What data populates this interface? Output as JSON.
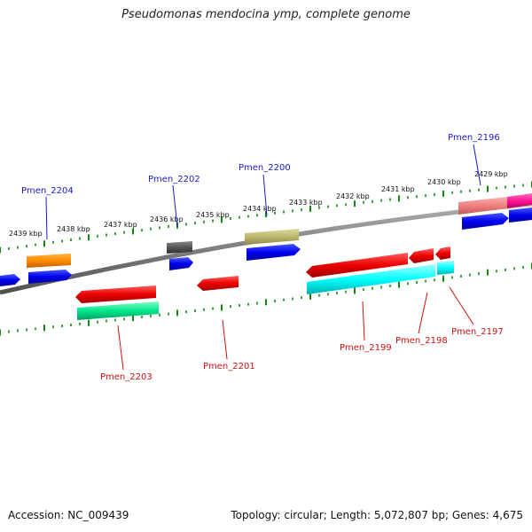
{
  "title": "Pseudomonas mendocina ymp, complete genome",
  "footer": {
    "accession": "Accession: NC_009439",
    "topology": "Topology: circular; Length: 5,072,807 bp; Genes: 4,675"
  },
  "colors": {
    "backbone": "#808080",
    "tick": "#118811",
    "forward_label": "#1a1acc",
    "reverse_label": "#cc1111"
  },
  "kbp_labels": [
    "2429 kbp",
    "2430 kbp",
    "2431 kbp",
    "2432 kbp",
    "2433 kbp",
    "2434 kbp",
    "2435 kbp",
    "2436 kbp",
    "2437 kbp",
    "2438 kbp",
    "2439 kbp"
  ],
  "gene_labels": [
    {
      "name": "Pmen_2196",
      "strand": "forward"
    },
    {
      "name": "Pmen_2197",
      "strand": "reverse"
    },
    {
      "name": "Pmen_2198",
      "strand": "reverse"
    },
    {
      "name": "Pmen_2199",
      "strand": "reverse"
    },
    {
      "name": "Pmen_2200",
      "strand": "forward"
    },
    {
      "name": "Pmen_2201",
      "strand": "reverse"
    },
    {
      "name": "Pmen_2202",
      "strand": "forward"
    },
    {
      "name": "Pmen_2203",
      "strand": "reverse"
    },
    {
      "name": "Pmen_2204",
      "strand": "forward"
    }
  ],
  "features": [
    {
      "id": "f-2204",
      "strand": "forward",
      "color": "#ff8c00",
      "kind": "cog"
    },
    {
      "id": "f-2202",
      "strand": "forward",
      "color": "#555555",
      "kind": "cog"
    },
    {
      "id": "f-2200",
      "strand": "forward",
      "color": "#bdb76b",
      "kind": "cog"
    },
    {
      "id": "f-2196",
      "strand": "forward",
      "color": "#f08080",
      "kind": "cog"
    },
    {
      "id": "f-next",
      "strand": "forward",
      "color": "#ff1493",
      "kind": "cog"
    },
    {
      "id": "f-2203",
      "strand": "reverse",
      "color": "#00e68a",
      "kind": "cog"
    },
    {
      "id": "f-2199",
      "strand": "reverse",
      "color": "#00ffff",
      "kind": "cog"
    }
  ]
}
